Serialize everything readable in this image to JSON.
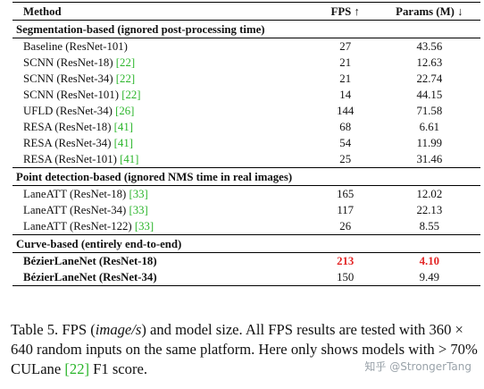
{
  "table": {
    "headers": {
      "method": "Method",
      "fps": "FPS ↑",
      "params": "Params (M) ↓"
    },
    "groups": [
      {
        "title": "Segmentation-based (ignored post-processing time)",
        "rows": [
          {
            "method": "Baseline (ResNet-101)",
            "ref": "",
            "fps": "27",
            "params": "43.56"
          },
          {
            "method": "SCNN (ResNet-18)",
            "ref": "[22]",
            "fps": "21",
            "params": "12.63"
          },
          {
            "method": "SCNN (ResNet-34)",
            "ref": "[22]",
            "fps": "21",
            "params": "22.74"
          },
          {
            "method": "SCNN (ResNet-101)",
            "ref": "[22]",
            "fps": "14",
            "params": "44.15"
          },
          {
            "method": "UFLD (ResNet-34)",
            "ref": "[26]",
            "fps": "144",
            "params": "71.58"
          },
          {
            "method": "RESA (ResNet-18)",
            "ref": "[41]",
            "fps": "68",
            "params": "6.61"
          },
          {
            "method": "RESA (ResNet-34)",
            "ref": "[41]",
            "fps": "54",
            "params": "11.99"
          },
          {
            "method": "RESA (ResNet-101)",
            "ref": "[41]",
            "fps": "25",
            "params": "31.46"
          }
        ]
      },
      {
        "title": "Point detection-based (ignored NMS time in real images)",
        "rows": [
          {
            "method": "LaneATT (ResNet-18)",
            "ref": "[33]",
            "fps": "165",
            "params": "12.02"
          },
          {
            "method": "LaneATT (ResNet-34)",
            "ref": "[33]",
            "fps": "117",
            "params": "22.13"
          },
          {
            "method": "LaneATT (ResNet-122)",
            "ref": "[33]",
            "fps": "26",
            "params": "8.55"
          }
        ]
      },
      {
        "title": "Curve-based (entirely end-to-end)",
        "rows": [
          {
            "method": "BézierLaneNet (ResNet-18)",
            "ref": "",
            "fps": "213",
            "params": "4.10"
          },
          {
            "method": "BézierLaneNet (ResNet-34)",
            "ref": "",
            "fps": "150",
            "params": "9.49"
          }
        ]
      }
    ]
  },
  "caption": {
    "p1": "Table 5. FPS (",
    "p1_italic": "image/s",
    "p2": ") and model size. All FPS results are tested with 360 × 640 random inputs on the same platform. Here only shows models with > 70% CULane ",
    "ref": "[22]",
    "p3": " F1 score."
  },
  "watermark": "知乎 @StrongerTang",
  "colors": {
    "ref": "#2ab52a",
    "best": "#e32626"
  }
}
